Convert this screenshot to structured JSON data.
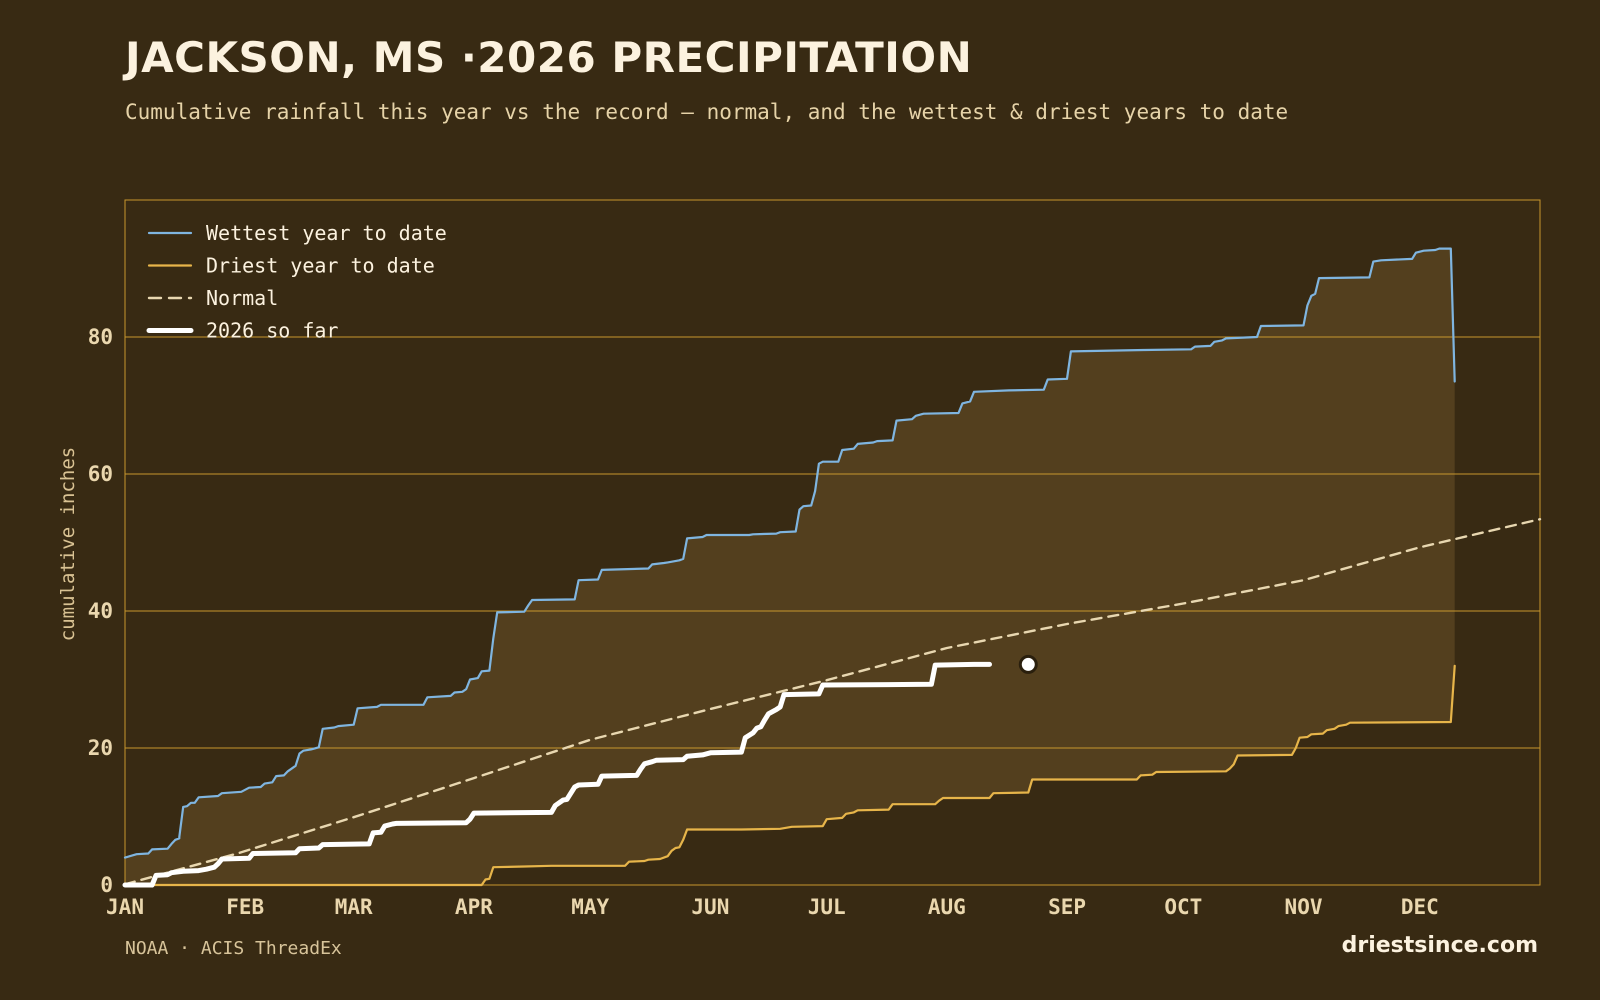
{
  "header": {
    "title": "JACKSON, MS ·2026 PRECIPITATION",
    "subtitle": "Cumulative rainfall this year vs the record — normal, and the wettest & driest years to date"
  },
  "footer": {
    "source": "NOAA · ACIS ThreadEx",
    "brand": "driestsince.com"
  },
  "colors": {
    "background": "#382a13",
    "band_fill": "#533f1e",
    "grid": "#c7972d",
    "wettest": "#7fb5e0",
    "driest": "#e7b54a",
    "normal": "#e8d7b0",
    "current": "#ffffff",
    "tick_text": "#ead7ae"
  },
  "chart_data": {
    "type": "line",
    "ylabel": "cumulative inches",
    "ylim": [
      0,
      100
    ],
    "yticks": [
      0,
      20,
      40,
      60,
      80
    ],
    "xlim": [
      1,
      366
    ],
    "x_unit": "day of year",
    "month_ticks": [
      {
        "label": "JAN",
        "day": 1
      },
      {
        "label": "FEB",
        "day": 32
      },
      {
        "label": "MAR",
        "day": 60
      },
      {
        "label": "APR",
        "day": 91
      },
      {
        "label": "MAY",
        "day": 121
      },
      {
        "label": "JUN",
        "day": 152
      },
      {
        "label": "JUL",
        "day": 182
      },
      {
        "label": "AUG",
        "day": 213
      },
      {
        "label": "SEP",
        "day": 244
      },
      {
        "label": "OCT",
        "day": 274
      },
      {
        "label": "NOV",
        "day": 305
      },
      {
        "label": "DEC",
        "day": 335
      }
    ],
    "legend_position": "top-left",
    "band": {
      "between": [
        "Wettest year to date",
        "Driest year to date"
      ]
    },
    "series": [
      {
        "name": "Wettest year to date",
        "style": "solid",
        "points": [
          [
            1,
            4
          ],
          [
            4,
            4.5
          ],
          [
            7,
            4.6
          ],
          [
            8,
            5.2
          ],
          [
            12,
            5.3
          ],
          [
            13,
            6
          ],
          [
            14,
            6.6
          ],
          [
            15,
            6.8
          ],
          [
            15,
            7
          ],
          [
            16,
            11.4
          ],
          [
            17,
            11.5
          ],
          [
            18,
            12
          ],
          [
            19,
            12
          ],
          [
            20,
            12.8
          ],
          [
            25,
            13
          ],
          [
            26,
            13.4
          ],
          [
            31,
            13.6
          ],
          [
            33,
            14.2
          ],
          [
            36,
            14.3
          ],
          [
            37,
            14.8
          ],
          [
            39,
            15
          ],
          [
            40,
            15.9
          ],
          [
            42,
            16
          ],
          [
            43,
            16.6
          ],
          [
            45,
            17.4
          ],
          [
            46,
            19.2
          ],
          [
            47,
            19.6
          ],
          [
            49,
            19.8
          ],
          [
            51,
            20.1
          ],
          [
            52,
            22.8
          ],
          [
            55,
            23
          ],
          [
            56,
            23.2
          ],
          [
            60,
            23.4
          ],
          [
            61,
            25.8
          ],
          [
            66,
            26
          ],
          [
            67,
            26.3
          ],
          [
            78,
            26.3
          ],
          [
            79,
            27.4
          ],
          [
            85,
            27.6
          ],
          [
            86,
            28.1
          ],
          [
            88,
            28.2
          ],
          [
            89,
            28.6
          ],
          [
            90,
            30
          ],
          [
            92,
            30.2
          ],
          [
            93,
            31.2
          ],
          [
            95,
            31.3
          ],
          [
            96,
            36
          ],
          [
            97,
            39.8
          ],
          [
            104,
            39.9
          ],
          [
            105,
            40.8
          ],
          [
            106,
            41.6
          ],
          [
            117,
            41.7
          ],
          [
            118,
            44.5
          ],
          [
            123,
            44.6
          ],
          [
            124,
            46
          ],
          [
            136,
            46.2
          ],
          [
            137,
            46.8
          ],
          [
            140,
            47
          ],
          [
            141,
            47.1
          ],
          [
            144,
            47.4
          ],
          [
            145,
            47.6
          ],
          [
            146,
            50.6
          ],
          [
            150,
            50.8
          ],
          [
            151,
            51.1
          ],
          [
            162,
            51.1
          ],
          [
            163,
            51.2
          ],
          [
            169,
            51.3
          ],
          [
            170,
            51.5
          ],
          [
            174,
            51.6
          ],
          [
            175,
            54.8
          ],
          [
            176,
            55.3
          ],
          [
            178,
            55.4
          ],
          [
            179,
            57.5
          ],
          [
            180,
            61.5
          ],
          [
            181,
            61.8
          ],
          [
            185,
            61.8
          ],
          [
            186,
            63.5
          ],
          [
            189,
            63.7
          ],
          [
            190,
            64.4
          ],
          [
            194,
            64.6
          ],
          [
            195,
            64.8
          ],
          [
            199,
            64.9
          ],
          [
            200,
            67.8
          ],
          [
            204,
            68
          ],
          [
            205,
            68.5
          ],
          [
            207,
            68.8
          ],
          [
            216,
            68.9
          ],
          [
            217,
            70.3
          ],
          [
            219,
            70.6
          ],
          [
            220,
            72
          ],
          [
            229,
            72.2
          ],
          [
            238,
            72.3
          ],
          [
            239,
            73.8
          ],
          [
            244,
            73.9
          ],
          [
            245,
            77.9
          ],
          [
            264,
            78.1
          ],
          [
            276,
            78.2
          ],
          [
            277,
            78.6
          ],
          [
            281,
            78.7
          ],
          [
            282,
            79.3
          ],
          [
            284,
            79.5
          ],
          [
            285,
            79.8
          ],
          [
            293,
            80
          ],
          [
            294,
            81.6
          ],
          [
            305,
            81.7
          ],
          [
            306,
            84.6
          ],
          [
            307,
            86
          ],
          [
            308,
            86.3
          ],
          [
            309,
            88.6
          ],
          [
            322,
            88.7
          ],
          [
            323,
            91
          ],
          [
            325,
            91.2
          ],
          [
            333,
            91.4
          ],
          [
            334,
            92.3
          ],
          [
            336,
            92.6
          ],
          [
            339,
            92.7
          ],
          [
            340,
            92.9
          ],
          [
            343,
            92.9
          ],
          [
            344,
            73.5
          ]
        ]
      },
      {
        "name": "Driest year to date",
        "style": "solid",
        "points": [
          [
            1,
            0
          ],
          [
            93,
            0
          ],
          [
            94,
            0.8
          ],
          [
            95,
            0.9
          ],
          [
            96,
            2.6
          ],
          [
            104,
            2.7
          ],
          [
            111,
            2.8
          ],
          [
            130,
            2.8
          ],
          [
            131,
            3.4
          ],
          [
            135,
            3.5
          ],
          [
            136,
            3.7
          ],
          [
            139,
            3.8
          ],
          [
            141,
            4.2
          ],
          [
            142,
            5
          ],
          [
            143,
            5.4
          ],
          [
            144,
            5.5
          ],
          [
            145,
            6.6
          ],
          [
            146,
            8.1
          ],
          [
            160,
            8.1
          ],
          [
            170,
            8.2
          ],
          [
            173,
            8.5
          ],
          [
            181,
            8.6
          ],
          [
            182,
            9.6
          ],
          [
            186,
            9.8
          ],
          [
            187,
            10.4
          ],
          [
            189,
            10.6
          ],
          [
            190,
            10.9
          ],
          [
            198,
            11
          ],
          [
            199,
            11.8
          ],
          [
            210,
            11.8
          ],
          [
            211,
            12.3
          ],
          [
            212,
            12.7
          ],
          [
            224,
            12.7
          ],
          [
            225,
            13.4
          ],
          [
            234,
            13.5
          ],
          [
            235,
            15.4
          ],
          [
            262,
            15.4
          ],
          [
            263,
            16
          ],
          [
            266,
            16.1
          ],
          [
            267,
            16.5
          ],
          [
            285,
            16.6
          ],
          [
            286,
            17
          ],
          [
            287,
            17.6
          ],
          [
            288,
            18.9
          ],
          [
            302,
            19
          ],
          [
            303,
            20
          ],
          [
            304,
            21.5
          ],
          [
            306,
            21.6
          ],
          [
            307,
            22
          ],
          [
            310,
            22.1
          ],
          [
            311,
            22.6
          ],
          [
            313,
            22.8
          ],
          [
            314,
            23.2
          ],
          [
            316,
            23.4
          ],
          [
            317,
            23.7
          ],
          [
            343,
            23.8
          ],
          [
            344,
            32
          ]
        ]
      },
      {
        "name": "Normal",
        "style": "dashed",
        "points": [
          [
            1,
            0.1
          ],
          [
            30,
            4.6
          ],
          [
            60,
            9.9
          ],
          [
            91,
            15.6
          ],
          [
            121,
            21.2
          ],
          [
            152,
            25.7
          ],
          [
            182,
            29.9
          ],
          [
            213,
            34.6
          ],
          [
            244,
            38.1
          ],
          [
            274,
            41.1
          ],
          [
            305,
            44.5
          ],
          [
            335,
            49.3
          ],
          [
            366,
            53.4
          ]
        ]
      },
      {
        "name": "2026 so far",
        "style": "bold",
        "points": [
          [
            1,
            0
          ],
          [
            8,
            0
          ],
          [
            9,
            1.4
          ],
          [
            12,
            1.5
          ],
          [
            13,
            1.8
          ],
          [
            16,
            2
          ],
          [
            20,
            2.1
          ],
          [
            22,
            2.3
          ],
          [
            24,
            2.6
          ],
          [
            25,
            3.1
          ],
          [
            26,
            3.8
          ],
          [
            33,
            3.9
          ],
          [
            34,
            4.6
          ],
          [
            45,
            4.7
          ],
          [
            46,
            5.3
          ],
          [
            51,
            5.4
          ],
          [
            52,
            5.9
          ],
          [
            64,
            6
          ],
          [
            65,
            7.6
          ],
          [
            67,
            7.7
          ],
          [
            68,
            8.6
          ],
          [
            70,
            8.9
          ],
          [
            71,
            9
          ],
          [
            89,
            9.1
          ],
          [
            90,
            9.6
          ],
          [
            91,
            10.5
          ],
          [
            111,
            10.6
          ],
          [
            112,
            11.6
          ],
          [
            114,
            12.4
          ],
          [
            115,
            12.5
          ],
          [
            117,
            14.3
          ],
          [
            118,
            14.6
          ],
          [
            123,
            14.7
          ],
          [
            124,
            15.9
          ],
          [
            133,
            16
          ],
          [
            134,
            16.9
          ],
          [
            135,
            17.7
          ],
          [
            137,
            18
          ],
          [
            138,
            18.2
          ],
          [
            145,
            18.3
          ],
          [
            146,
            18.8
          ],
          [
            150,
            19
          ],
          [
            152,
            19.3
          ],
          [
            160,
            19.4
          ],
          [
            161,
            21.5
          ],
          [
            163,
            22.2
          ],
          [
            164,
            22.9
          ],
          [
            165,
            23.1
          ],
          [
            166,
            24.1
          ],
          [
            167,
            25
          ],
          [
            169,
            25.6
          ],
          [
            170,
            26
          ],
          [
            171,
            27.8
          ],
          [
            180,
            27.9
          ],
          [
            181,
            29.2
          ],
          [
            209,
            29.3
          ],
          [
            210,
            32.1
          ],
          [
            220,
            32.2
          ],
          [
            224,
            32.2
          ]
        ]
      }
    ],
    "current_marker": {
      "day": 234,
      "value": 32.2
    }
  }
}
